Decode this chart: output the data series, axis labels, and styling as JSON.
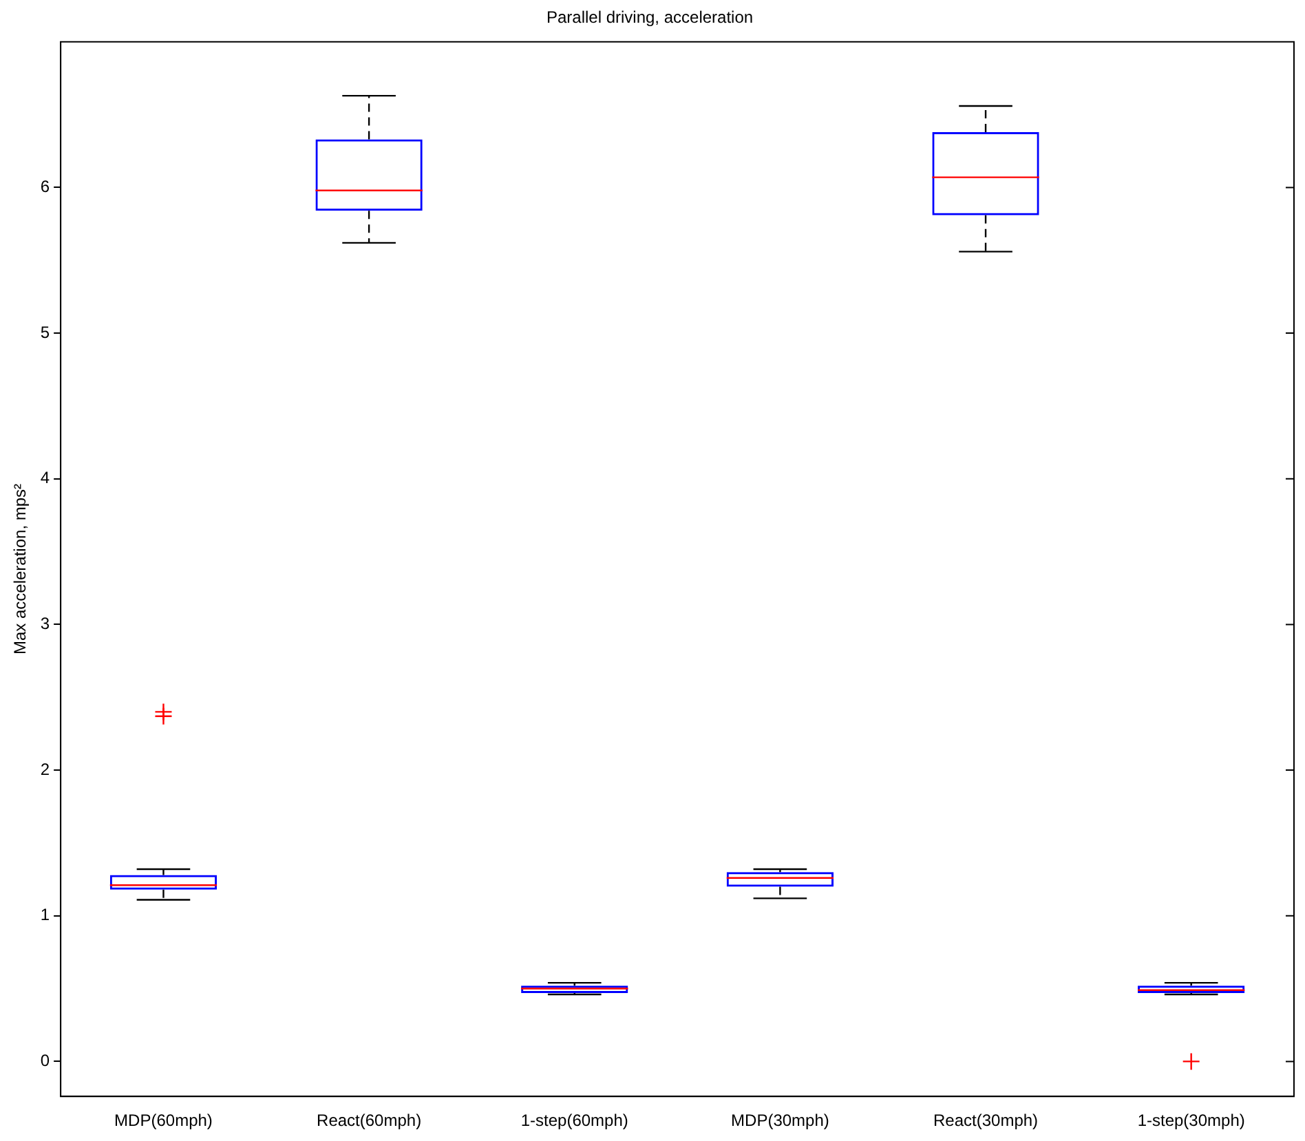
{
  "chart_data": {
    "type": "box",
    "title": "Parallel driving, acceleration",
    "ylabel": "Max acceleration, mps²",
    "categories": [
      "MDP(60mph)",
      "React(60mph)",
      "1-step(60mph)",
      "MDP(30mph)",
      "React(30mph)",
      "1-step(30mph)"
    ],
    "series": [
      {
        "color": "#0000ff",
        "boxes": [
          {
            "low": 1.11,
            "q1": 1.18,
            "median": 1.21,
            "q3": 1.28,
            "high": 1.32,
            "outliers": [
              2.4,
              2.37
            ]
          },
          {
            "low": 5.62,
            "q1": 5.84,
            "median": 5.98,
            "q3": 6.33,
            "high": 6.63
          },
          {
            "low": 0.46,
            "q1": 0.47,
            "median": 0.5,
            "q3": 0.52,
            "high": 0.54
          },
          {
            "low": 1.12,
            "q1": 1.2,
            "median": 1.26,
            "q3": 1.3,
            "high": 1.32
          },
          {
            "low": 5.56,
            "q1": 5.81,
            "median": 6.07,
            "q3": 6.38,
            "high": 6.56
          },
          {
            "low": 0.46,
            "q1": 0.47,
            "median": 0.49,
            "q3": 0.52,
            "high": 0.54,
            "outliers": [
              0
            ]
          }
        ]
      }
    ],
    "ylim": [
      -0.24,
      7
    ],
    "yticks": [
      0,
      1,
      2,
      3,
      4,
      5,
      6
    ],
    "grid": false,
    "marker": "cross"
  }
}
